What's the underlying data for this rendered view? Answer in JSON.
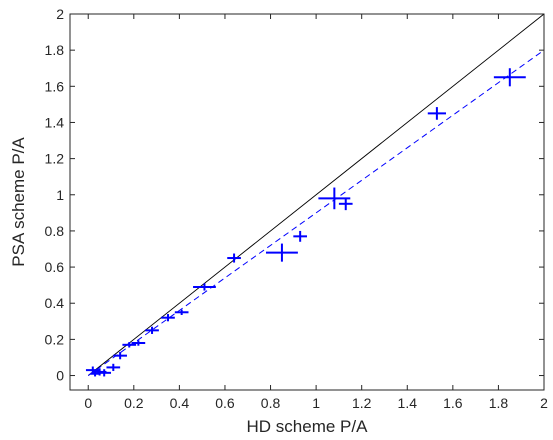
{
  "chart_data": {
    "type": "scatter",
    "xlabel": "HD scheme P/A",
    "ylabel": "PSA scheme P/A",
    "xlim": [
      -0.08,
      2.0
    ],
    "ylim": [
      -0.08,
      2.0
    ],
    "xticks": [
      "0",
      "0.2",
      "0.4",
      "0.6",
      "0.8",
      "1",
      "1.2",
      "1.4",
      "1.6",
      "1.8",
      "2"
    ],
    "yticks": [
      "0",
      "0.2",
      "0.4",
      "0.6",
      "0.8",
      "1",
      "1.2",
      "1.4",
      "1.6",
      "1.8",
      "2"
    ],
    "grid": false,
    "points": [
      {
        "x": 0.02,
        "y": 0.03,
        "xerr": 0.03,
        "yerr": 0.02
      },
      {
        "x": 0.03,
        "y": 0.01,
        "xerr": 0.02,
        "yerr": 0.015
      },
      {
        "x": 0.05,
        "y": 0.02,
        "xerr": 0.03,
        "yerr": 0.02
      },
      {
        "x": 0.07,
        "y": 0.015,
        "xerr": 0.03,
        "yerr": 0.02
      },
      {
        "x": 0.11,
        "y": 0.045,
        "xerr": 0.03,
        "yerr": 0.02
      },
      {
        "x": 0.14,
        "y": 0.11,
        "xerr": 0.03,
        "yerr": 0.02
      },
      {
        "x": 0.18,
        "y": 0.17,
        "xerr": 0.03,
        "yerr": 0.015
      },
      {
        "x": 0.22,
        "y": 0.18,
        "xerr": 0.03,
        "yerr": 0.015
      },
      {
        "x": 0.28,
        "y": 0.25,
        "xerr": 0.03,
        "yerr": 0.02
      },
      {
        "x": 0.35,
        "y": 0.32,
        "xerr": 0.03,
        "yerr": 0.02
      },
      {
        "x": 0.41,
        "y": 0.35,
        "xerr": 0.03,
        "yerr": 0.015
      },
      {
        "x": 0.51,
        "y": 0.49,
        "xerr": 0.05,
        "yerr": 0.02
      },
      {
        "x": 0.64,
        "y": 0.65,
        "xerr": 0.03,
        "yerr": 0.025
      },
      {
        "x": 0.85,
        "y": 0.68,
        "xerr": 0.07,
        "yerr": 0.05
      },
      {
        "x": 0.93,
        "y": 0.77,
        "xerr": 0.03,
        "yerr": 0.03
      },
      {
        "x": 1.08,
        "y": 0.98,
        "xerr": 0.07,
        "yerr": 0.06
      },
      {
        "x": 1.13,
        "y": 0.95,
        "xerr": 0.03,
        "yerr": 0.035
      },
      {
        "x": 1.53,
        "y": 1.45,
        "xerr": 0.04,
        "yerr": 0.035
      },
      {
        "x": 1.85,
        "y": 1.65,
        "xerr": 0.07,
        "yerr": 0.05
      }
    ],
    "reference_line": {
      "style": "solid",
      "color": "#000000",
      "from": [
        0,
        0
      ],
      "to": [
        2,
        2
      ]
    },
    "fit_line": {
      "style": "dashed",
      "color": "#0000ff",
      "from": [
        0,
        0
      ],
      "to": [
        2,
        1.8
      ]
    },
    "marker_color": "#0000ff"
  }
}
